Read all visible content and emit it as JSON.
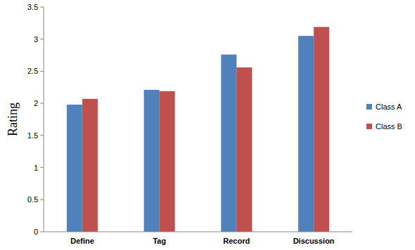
{
  "chart_data": {
    "type": "bar",
    "y_label": "Rating",
    "categories": [
      "Define",
      "Tag",
      "Record",
      "Discussion"
    ],
    "series": [
      {
        "name": "Class A",
        "color": "#4f81bd",
        "values": [
          1.98,
          2.21,
          2.76,
          3.05
        ]
      },
      {
        "name": "Class B",
        "color": "#c0504d",
        "values": [
          2.07,
          2.19,
          2.56,
          3.19
        ]
      }
    ],
    "ylim": [
      0,
      3.5
    ],
    "yticks": [
      0,
      0.5,
      1,
      1.5,
      2,
      2.5,
      3,
      3.5
    ],
    "grid": false,
    "legend": "right"
  }
}
